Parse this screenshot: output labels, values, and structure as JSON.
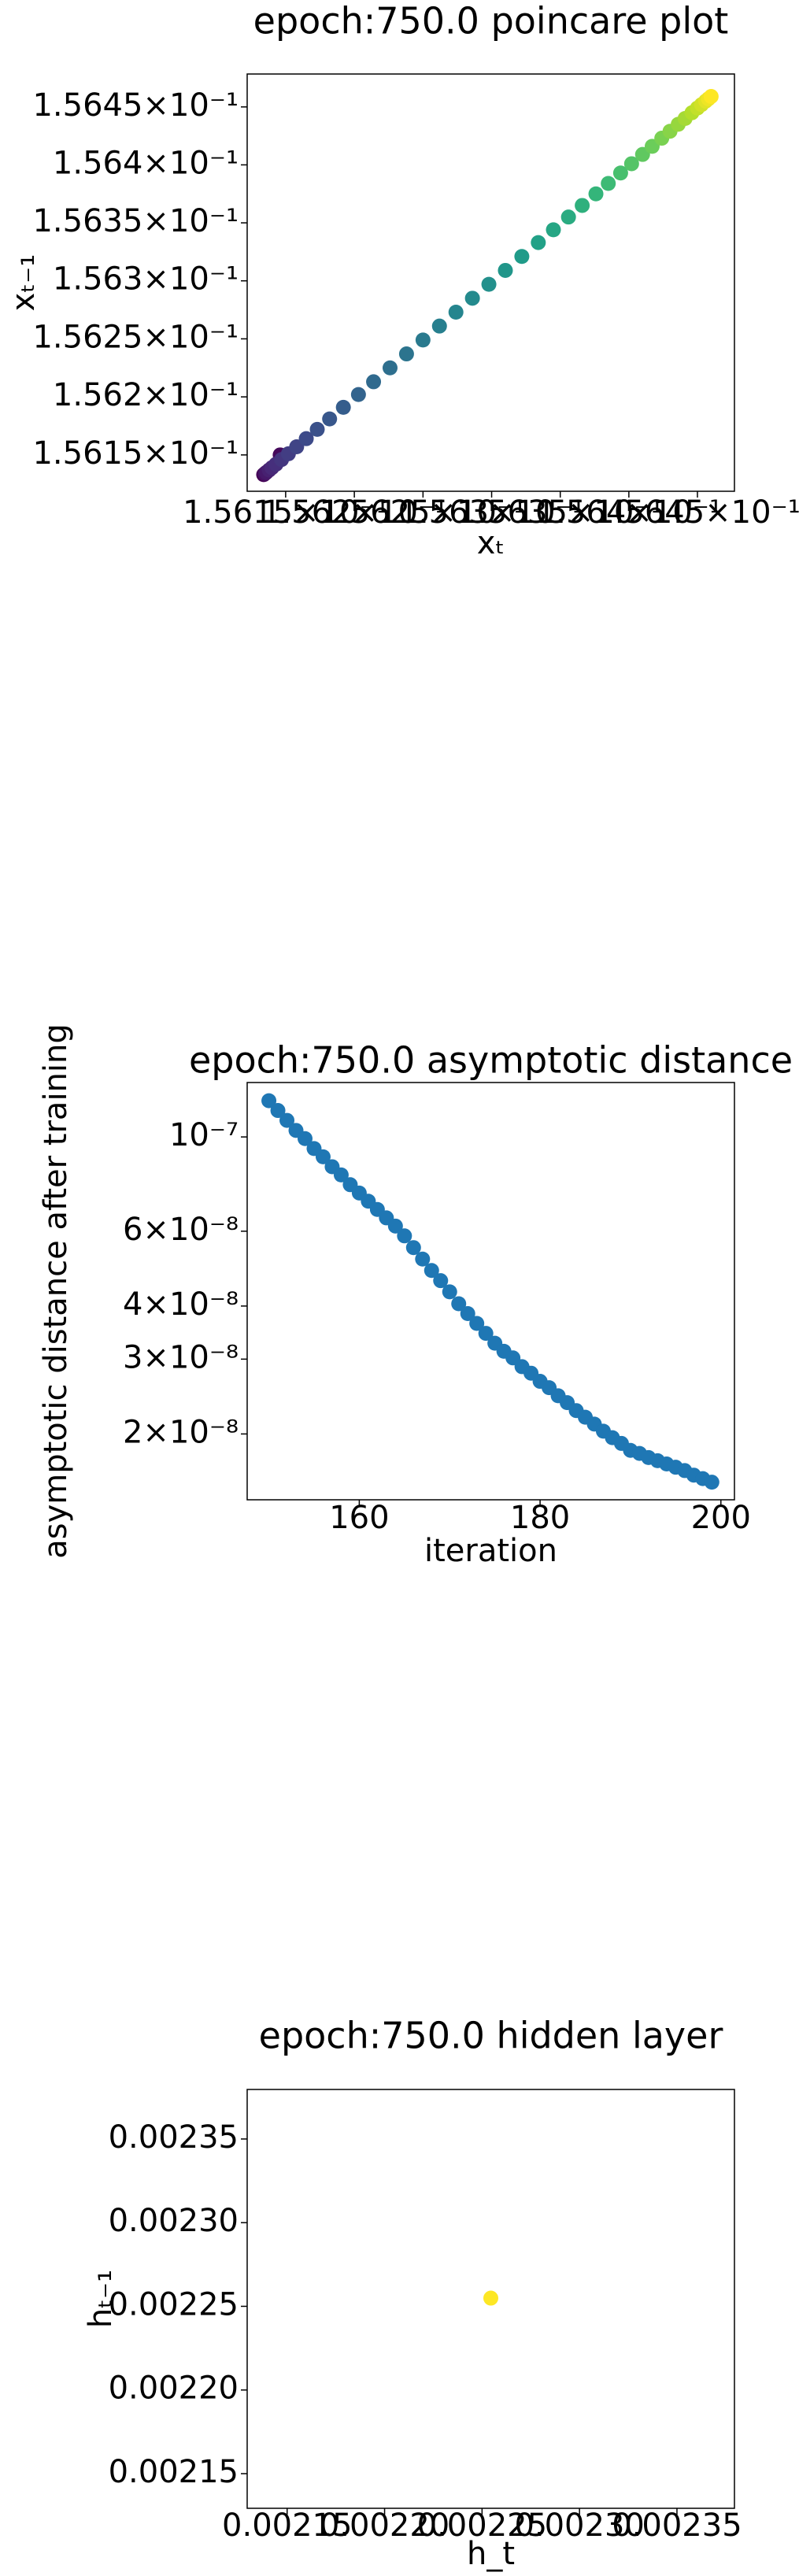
{
  "chart_data": [
    {
      "type": "scatter",
      "title": "epoch:750.0 poincare plot",
      "x_label": "xₜ",
      "y_label": "xₜ₋₁",
      "xscale": "log",
      "yscale": "log",
      "colormap": "viridis",
      "x": [
        0.156134,
        0.156146,
        0.156135,
        0.156136,
        0.156138,
        0.15614,
        0.156143,
        0.156147,
        0.156152,
        0.156158,
        0.156165,
        0.156173,
        0.156182,
        0.156192,
        0.156203,
        0.156214,
        0.156226,
        0.156238,
        0.15625,
        0.156262,
        0.156274,
        0.156286,
        0.156298,
        0.15631,
        0.156322,
        0.156334,
        0.156345,
        0.156356,
        0.156366,
        0.156376,
        0.156385,
        0.156394,
        0.156402,
        0.15641,
        0.156417,
        0.156424,
        0.15643,
        0.156436,
        0.156441,
        0.156446,
        0.15645,
        0.156453,
        0.156456,
        0.156458,
        0.15646
      ],
      "y": [
        0.156133,
        0.15615,
        0.156134,
        0.156135,
        0.156137,
        0.156139,
        0.156142,
        0.156146,
        0.156151,
        0.156157,
        0.156164,
        0.156172,
        0.156181,
        0.156191,
        0.156202,
        0.156213,
        0.156225,
        0.156237,
        0.156249,
        0.156261,
        0.156273,
        0.156285,
        0.156297,
        0.156309,
        0.156321,
        0.156333,
        0.156344,
        0.156355,
        0.156365,
        0.156375,
        0.156384,
        0.156393,
        0.156401,
        0.156409,
        0.156416,
        0.156423,
        0.156429,
        0.156435,
        0.15644,
        0.156445,
        0.156449,
        0.156452,
        0.156455,
        0.156457,
        0.156459
      ],
      "xlim": [
        0.156122,
        0.156477
      ],
      "ylim": [
        0.1561187,
        0.1564784
      ],
      "xticks": [
        {
          "value": 0.15615,
          "label": "1.5615×10⁻¹"
        },
        {
          "value": 0.1562,
          "label": "1.562×10⁻¹"
        },
        {
          "value": 0.15625,
          "label": "1.5625×10⁻¹"
        },
        {
          "value": 0.1563,
          "label": "1.563×10⁻¹"
        },
        {
          "value": 0.15635,
          "label": "1.5635×10⁻¹"
        },
        {
          "value": 0.1564,
          "label": "1.564×10⁻¹"
        },
        {
          "value": 0.15645,
          "label": "1.5645×10⁻¹"
        }
      ],
      "yticks": [
        {
          "value": 0.15615,
          "label": "1.5615×10⁻¹"
        },
        {
          "value": 0.1562,
          "label": "1.562×10⁻¹"
        },
        {
          "value": 0.15625,
          "label": "1.5625×10⁻¹"
        },
        {
          "value": 0.1563,
          "label": "1.563×10⁻¹"
        },
        {
          "value": 0.15635,
          "label": "1.5635×10⁻¹"
        },
        {
          "value": 0.1564,
          "label": "1.564×10⁻¹"
        },
        {
          "value": 0.15645,
          "label": "1.5645×10⁻¹"
        }
      ]
    },
    {
      "type": "scatter",
      "title": "epoch:750.0 asymptotic distance",
      "x_label": "iteration",
      "y_label": "asymptotic distance after training",
      "yscale": "log",
      "color": "#1f77b4",
      "x": [
        150,
        151,
        152,
        153,
        154,
        155,
        156,
        157,
        158,
        159,
        160,
        161,
        162,
        163,
        164,
        165,
        166,
        167,
        168,
        169,
        170,
        171,
        172,
        173,
        174,
        175,
        176,
        177,
        178,
        179,
        180,
        181,
        182,
        183,
        184,
        185,
        186,
        187,
        188,
        189,
        190,
        191,
        192,
        193,
        194,
        195,
        196,
        197,
        198,
        199
      ],
      "y": [
        1.217e-07,
        1.154e-07,
        1.094e-07,
        1.036e-07,
        9.91e-08,
        9.39e-08,
        8.98e-08,
        8.51e-08,
        8.14e-08,
        7.72e-08,
        7.38e-08,
        7.06e-08,
        6.75e-08,
        6.45e-08,
        6.17e-08,
        5.85e-08,
        5.49e-08,
        5.16e-08,
        4.85e-08,
        4.59e-08,
        4.32e-08,
        4.05e-08,
        3.84e-08,
        3.64e-08,
        3.45e-08,
        3.27e-08,
        3.13e-08,
        3.02e-08,
        2.88e-08,
        2.78e-08,
        2.66e-08,
        2.57e-08,
        2.46e-08,
        2.37e-08,
        2.27e-08,
        2.19e-08,
        2.11e-08,
        2.03e-08,
        1.96e-08,
        1.9e-08,
        1.83e-08,
        1.8e-08,
        1.76e-08,
        1.73e-08,
        1.7e-08,
        1.67e-08,
        1.64e-08,
        1.6e-08,
        1.57e-08,
        1.54e-08
      ],
      "xlim": [
        147.6,
        201.5
      ],
      "ylim": [
        1.4e-08,
        1.343e-07
      ],
      "xticks": [
        160,
        180,
        200
      ],
      "yticks": [
        {
          "value": 1e-07,
          "label": "10⁻⁷"
        },
        {
          "value": 6e-08,
          "label": "6×10⁻⁸"
        },
        {
          "value": 4e-08,
          "label": "4×10⁻⁸"
        },
        {
          "value": 3e-08,
          "label": "3×10⁻⁸"
        },
        {
          "value": 2e-08,
          "label": "2×10⁻⁸"
        }
      ]
    },
    {
      "type": "scatter",
      "title": "epoch:750.0 hidden layer",
      "x_label": "h_t",
      "y_label": "hₜ₋₁",
      "color": "#fde725",
      "x": [
        0.0022545
      ],
      "y": [
        0.0022549
      ],
      "xlim": [
        0.0021295,
        0.0023795
      ],
      "ylim": [
        0.0021293,
        0.0023796
      ],
      "xticks": [
        0.00215,
        {
          "value": 0.0022,
          "label": "0.00220"
        },
        0.00225,
        {
          "value": 0.0023,
          "label": "0.00230"
        },
        0.00235
      ],
      "yticks": [
        0.00215,
        {
          "value": 0.0022,
          "label": "0.00220"
        },
        0.00225,
        {
          "value": 0.0023,
          "label": "0.00230"
        },
        0.00235
      ]
    }
  ]
}
